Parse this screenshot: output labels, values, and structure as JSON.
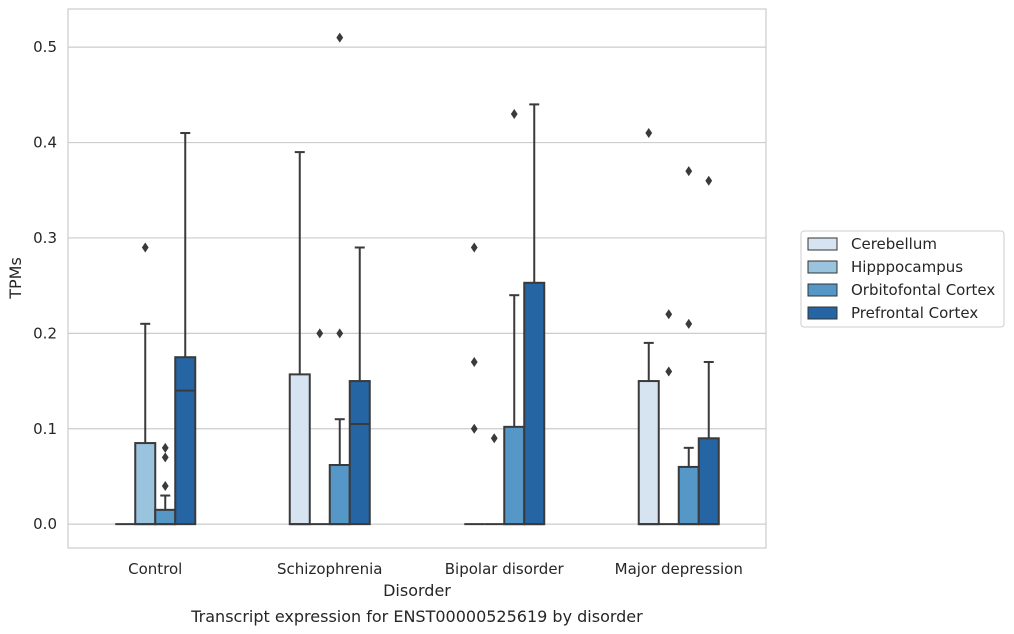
{
  "chart_data": {
    "type": "box",
    "xlabel": "Disorder",
    "ylabel": "TPMs",
    "caption": "Transcript expression for ENST00000525619 by disorder",
    "ylim": [
      -0.025,
      0.54
    ],
    "yticks": [
      0.0,
      0.1,
      0.2,
      0.3,
      0.4,
      0.5
    ],
    "ytick_labels": [
      "0.0",
      "0.1",
      "0.2",
      "0.3",
      "0.4",
      "0.5"
    ],
    "grid": "horizontal",
    "legend_position": "right",
    "categories": [
      "Control",
      "Schizophrenia",
      "Bipolar disorder",
      "Major depression"
    ],
    "series": [
      {
        "name": "Cerebellum",
        "color": "#d6e4f2",
        "boxes": [
          {
            "q1": 0,
            "median": 0,
            "q3": 0,
            "whisker_low": 0,
            "whisker_high": 0,
            "outliers": []
          },
          {
            "q1": 0,
            "median": 0,
            "q3": 0.157,
            "whisker_low": 0,
            "whisker_high": 0.39,
            "outliers": []
          },
          {
            "q1": 0,
            "median": 0,
            "q3": 0,
            "whisker_low": 0,
            "whisker_high": 0,
            "outliers": [
              0.29,
              0.17,
              0.1
            ]
          },
          {
            "q1": 0,
            "median": 0,
            "q3": 0.15,
            "whisker_low": 0,
            "whisker_high": 0.19,
            "outliers": [
              0.41
            ]
          }
        ]
      },
      {
        "name": "Hipppocampus",
        "color": "#9ac3de",
        "boxes": [
          {
            "q1": 0,
            "median": 0,
            "q3": 0.085,
            "whisker_low": 0,
            "whisker_high": 0.21,
            "outliers": [
              0.29
            ]
          },
          {
            "q1": 0,
            "median": 0,
            "q3": 0,
            "whisker_low": 0,
            "whisker_high": 0,
            "outliers": [
              0.2
            ]
          },
          {
            "q1": 0,
            "median": 0,
            "q3": 0,
            "whisker_low": 0,
            "whisker_high": 0,
            "outliers": [
              0.09
            ]
          },
          {
            "q1": 0,
            "median": 0,
            "q3": 0,
            "whisker_low": 0,
            "whisker_high": 0,
            "outliers": [
              0.22,
              0.16
            ]
          }
        ]
      },
      {
        "name": "Orbitofontal Cortex",
        "color": "#5597c6",
        "boxes": [
          {
            "q1": 0,
            "median": 0,
            "q3": 0.015,
            "whisker_low": 0,
            "whisker_high": 0.03,
            "outliers": [
              0.08,
              0.07,
              0.04
            ]
          },
          {
            "q1": 0,
            "median": 0,
            "q3": 0.062,
            "whisker_low": 0,
            "whisker_high": 0.11,
            "outliers": [
              0.51,
              0.2
            ]
          },
          {
            "q1": 0,
            "median": 0,
            "q3": 0.102,
            "whisker_low": 0,
            "whisker_high": 0.24,
            "outliers": [
              0.43
            ]
          },
          {
            "q1": 0,
            "median": 0,
            "q3": 0.06,
            "whisker_low": 0,
            "whisker_high": 0.08,
            "outliers": [
              0.37,
              0.21
            ]
          }
        ]
      },
      {
        "name": "Prefrontal Cortex",
        "color": "#2565a4",
        "boxes": [
          {
            "q1": 0,
            "median": 0.14,
            "q3": 0.175,
            "whisker_low": 0,
            "whisker_high": 0.41,
            "outliers": []
          },
          {
            "q1": 0,
            "median": 0.105,
            "q3": 0.15,
            "whisker_low": 0,
            "whisker_high": 0.29,
            "outliers": []
          },
          {
            "q1": 0,
            "median": 0,
            "q3": 0.253,
            "whisker_low": 0,
            "whisker_high": 0.44,
            "outliers": []
          },
          {
            "q1": 0,
            "median": 0,
            "q3": 0.09,
            "whisker_low": 0,
            "whisker_high": 0.17,
            "outliers": [
              0.36
            ]
          }
        ]
      }
    ]
  }
}
